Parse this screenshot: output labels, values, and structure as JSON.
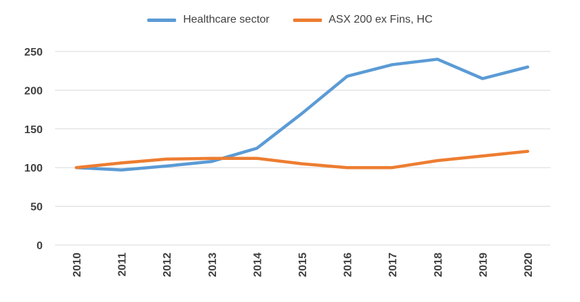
{
  "chart_data": {
    "type": "line",
    "title": "",
    "xlabel": "",
    "ylabel": "",
    "categories": [
      "2010",
      "2011",
      "2012",
      "2013",
      "2014",
      "2015",
      "2016",
      "2017",
      "2018",
      "2019",
      "2020"
    ],
    "series": [
      {
        "name": "Healthcare sector",
        "color": "#5B9BD5",
        "values": [
          100,
          97,
          102,
          108,
          125,
          170,
          218,
          233,
          240,
          215,
          230
        ]
      },
      {
        "name": "ASX 200 ex Fins, HC",
        "color": "#ED7D31",
        "values": [
          100,
          106,
          111,
          112,
          112,
          105,
          100,
          100,
          109,
          115,
          121
        ]
      }
    ],
    "yticks": [
      0,
      50,
      100,
      150,
      200,
      250
    ],
    "ylim": [
      0,
      250
    ],
    "grid": true,
    "legend": "top-center"
  }
}
